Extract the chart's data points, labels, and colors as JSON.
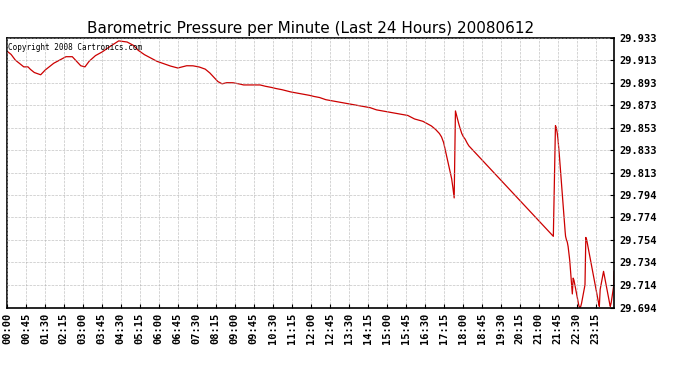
{
  "title": "Barometric Pressure per Minute (Last 24 Hours) 20080612",
  "copyright_text": "Copyright 2008 Cartronics.com",
  "line_color": "#cc0000",
  "background_color": "#ffffff",
  "grid_color": "#aaaaaa",
  "border_color": "#000000",
  "title_fontsize": 11,
  "tick_fontsize": 7.5,
  "y_min": 29.694,
  "y_max": 29.933,
  "yticks": [
    29.694,
    29.714,
    29.734,
    29.754,
    29.774,
    29.794,
    29.813,
    29.833,
    29.853,
    29.873,
    29.893,
    29.913,
    29.933
  ],
  "x_labels": [
    "00:00",
    "00:45",
    "01:30",
    "02:15",
    "03:00",
    "03:45",
    "04:30",
    "05:15",
    "06:00",
    "06:45",
    "07:30",
    "08:15",
    "09:00",
    "09:45",
    "10:30",
    "11:15",
    "12:00",
    "12:45",
    "13:30",
    "14:15",
    "15:00",
    "15:45",
    "16:30",
    "17:15",
    "18:00",
    "18:45",
    "19:30",
    "20:15",
    "21:00",
    "21:45",
    "22:30",
    "23:15"
  ],
  "waypoints": [
    [
      0,
      29.921
    ],
    [
      10,
      29.918
    ],
    [
      20,
      29.913
    ],
    [
      30,
      29.91
    ],
    [
      40,
      29.907
    ],
    [
      50,
      29.907
    ],
    [
      55,
      29.905
    ],
    [
      65,
      29.902
    ],
    [
      80,
      29.9
    ],
    [
      90,
      29.904
    ],
    [
      100,
      29.907
    ],
    [
      110,
      29.91
    ],
    [
      120,
      29.912
    ],
    [
      130,
      29.914
    ],
    [
      140,
      29.916
    ],
    [
      155,
      29.916
    ],
    [
      165,
      29.912
    ],
    [
      175,
      29.908
    ],
    [
      185,
      29.907
    ],
    [
      195,
      29.912
    ],
    [
      210,
      29.917
    ],
    [
      225,
      29.92
    ],
    [
      240,
      29.924
    ],
    [
      265,
      29.93
    ],
    [
      285,
      29.929
    ],
    [
      300,
      29.926
    ],
    [
      310,
      29.922
    ],
    [
      325,
      29.918
    ],
    [
      340,
      29.915
    ],
    [
      355,
      29.912
    ],
    [
      370,
      29.91
    ],
    [
      385,
      29.908
    ],
    [
      395,
      29.907
    ],
    [
      405,
      29.906
    ],
    [
      415,
      29.907
    ],
    [
      425,
      29.908
    ],
    [
      440,
      29.908
    ],
    [
      455,
      29.907
    ],
    [
      470,
      29.905
    ],
    [
      480,
      29.902
    ],
    [
      490,
      29.898
    ],
    [
      500,
      29.894
    ],
    [
      510,
      29.892
    ],
    [
      520,
      29.893
    ],
    [
      535,
      29.893
    ],
    [
      550,
      29.892
    ],
    [
      560,
      29.891
    ],
    [
      575,
      29.891
    ],
    [
      585,
      29.891
    ],
    [
      600,
      29.891
    ],
    [
      610,
      29.89
    ],
    [
      625,
      29.889
    ],
    [
      635,
      29.888
    ],
    [
      650,
      29.887
    ],
    [
      660,
      29.886
    ],
    [
      670,
      29.885
    ],
    [
      685,
      29.884
    ],
    [
      700,
      29.883
    ],
    [
      715,
      29.882
    ],
    [
      725,
      29.881
    ],
    [
      740,
      29.88
    ],
    [
      755,
      29.878
    ],
    [
      770,
      29.877
    ],
    [
      785,
      29.876
    ],
    [
      800,
      29.875
    ],
    [
      815,
      29.874
    ],
    [
      830,
      29.873
    ],
    [
      845,
      29.872
    ],
    [
      860,
      29.871
    ],
    [
      875,
      29.869
    ],
    [
      890,
      29.868
    ],
    [
      905,
      29.867
    ],
    [
      920,
      29.866
    ],
    [
      935,
      29.865
    ],
    [
      950,
      29.864
    ],
    [
      960,
      29.862
    ],
    [
      965,
      29.861
    ],
    [
      975,
      29.86
    ],
    [
      985,
      29.859
    ],
    [
      995,
      29.857
    ],
    [
      1005,
      29.855
    ],
    [
      1015,
      29.852
    ],
    [
      1025,
      29.848
    ],
    [
      1030,
      29.845
    ],
    [
      1035,
      29.84
    ],
    [
      1038,
      29.835
    ],
    [
      1042,
      29.828
    ],
    [
      1046,
      29.822
    ],
    [
      1050,
      29.815
    ],
    [
      1054,
      29.808
    ],
    [
      1056,
      29.803
    ],
    [
      1058,
      29.797
    ],
    [
      1060,
      29.791
    ],
    [
      1063,
      29.868
    ],
    [
      1067,
      29.862
    ],
    [
      1072,
      29.855
    ],
    [
      1078,
      29.848
    ],
    [
      1082,
      29.845
    ],
    [
      1086,
      29.843
    ],
    [
      1090,
      29.84
    ],
    [
      1095,
      29.837
    ],
    [
      1100,
      29.835
    ],
    [
      1105,
      29.833
    ],
    [
      1110,
      29.831
    ],
    [
      1115,
      29.829
    ],
    [
      1120,
      29.827
    ],
    [
      1125,
      29.825
    ],
    [
      1130,
      29.823
    ],
    [
      1135,
      29.821
    ],
    [
      1140,
      29.819
    ],
    [
      1145,
      29.817
    ],
    [
      1150,
      29.815
    ],
    [
      1155,
      29.813
    ],
    [
      1160,
      29.811
    ],
    [
      1165,
      29.809
    ],
    [
      1170,
      29.807
    ],
    [
      1175,
      29.805
    ],
    [
      1180,
      29.803
    ],
    [
      1185,
      29.801
    ],
    [
      1190,
      29.799
    ],
    [
      1195,
      29.797
    ],
    [
      1200,
      29.795
    ],
    [
      1205,
      29.793
    ],
    [
      1210,
      29.791
    ],
    [
      1215,
      29.789
    ],
    [
      1220,
      29.787
    ],
    [
      1225,
      29.785
    ],
    [
      1230,
      29.783
    ],
    [
      1235,
      29.781
    ],
    [
      1240,
      29.779
    ],
    [
      1245,
      29.777
    ],
    [
      1250,
      29.775
    ],
    [
      1255,
      29.773
    ],
    [
      1260,
      29.771
    ],
    [
      1265,
      29.769
    ],
    [
      1270,
      29.767
    ],
    [
      1275,
      29.765
    ],
    [
      1280,
      29.763
    ],
    [
      1285,
      29.761
    ],
    [
      1290,
      29.759
    ],
    [
      1295,
      29.757
    ],
    [
      1300,
      29.855
    ],
    [
      1302,
      29.853
    ],
    [
      1304,
      29.849
    ],
    [
      1306,
      29.843
    ],
    [
      1308,
      29.835
    ],
    [
      1310,
      29.825
    ],
    [
      1312,
      29.815
    ],
    [
      1314,
      29.805
    ],
    [
      1316,
      29.795
    ],
    [
      1318,
      29.785
    ],
    [
      1320,
      29.775
    ],
    [
      1322,
      29.765
    ],
    [
      1324,
      29.757
    ],
    [
      1326,
      29.754
    ],
    [
      1328,
      29.752
    ],
    [
      1330,
      29.748
    ],
    [
      1332,
      29.742
    ],
    [
      1334,
      29.735
    ],
    [
      1336,
      29.725
    ],
    [
      1338,
      29.715
    ],
    [
      1340,
      29.706
    ],
    [
      1342,
      29.72
    ],
    [
      1344,
      29.718
    ],
    [
      1346,
      29.714
    ],
    [
      1348,
      29.71
    ],
    [
      1350,
      29.706
    ],
    [
      1352,
      29.702
    ],
    [
      1354,
      29.698
    ],
    [
      1356,
      29.695
    ],
    [
      1358,
      29.694
    ],
    [
      1360,
      29.695
    ],
    [
      1362,
      29.698
    ],
    [
      1364,
      29.702
    ],
    [
      1366,
      29.706
    ],
    [
      1368,
      29.71
    ],
    [
      1370,
      29.714
    ],
    [
      1372,
      29.756
    ],
    [
      1374,
      29.754
    ],
    [
      1376,
      29.75
    ],
    [
      1378,
      29.746
    ],
    [
      1380,
      29.742
    ],
    [
      1382,
      29.738
    ],
    [
      1384,
      29.734
    ],
    [
      1386,
      29.73
    ],
    [
      1388,
      29.726
    ],
    [
      1390,
      29.722
    ],
    [
      1392,
      29.718
    ],
    [
      1394,
      29.714
    ],
    [
      1396,
      29.71
    ],
    [
      1398,
      29.706
    ],
    [
      1400,
      29.702
    ],
    [
      1402,
      29.698
    ],
    [
      1404,
      29.695
    ],
    [
      1406,
      29.71
    ],
    [
      1408,
      29.714
    ],
    [
      1410,
      29.718
    ],
    [
      1412,
      29.722
    ],
    [
      1414,
      29.726
    ],
    [
      1416,
      29.722
    ],
    [
      1418,
      29.718
    ],
    [
      1420,
      29.714
    ],
    [
      1422,
      29.71
    ],
    [
      1424,
      29.706
    ],
    [
      1426,
      29.702
    ],
    [
      1428,
      29.698
    ],
    [
      1430,
      29.695
    ],
    [
      1432,
      29.698
    ],
    [
      1434,
      29.703
    ],
    [
      1436,
      29.708
    ],
    [
      1438,
      29.713
    ],
    [
      1439,
      29.726
    ]
  ]
}
